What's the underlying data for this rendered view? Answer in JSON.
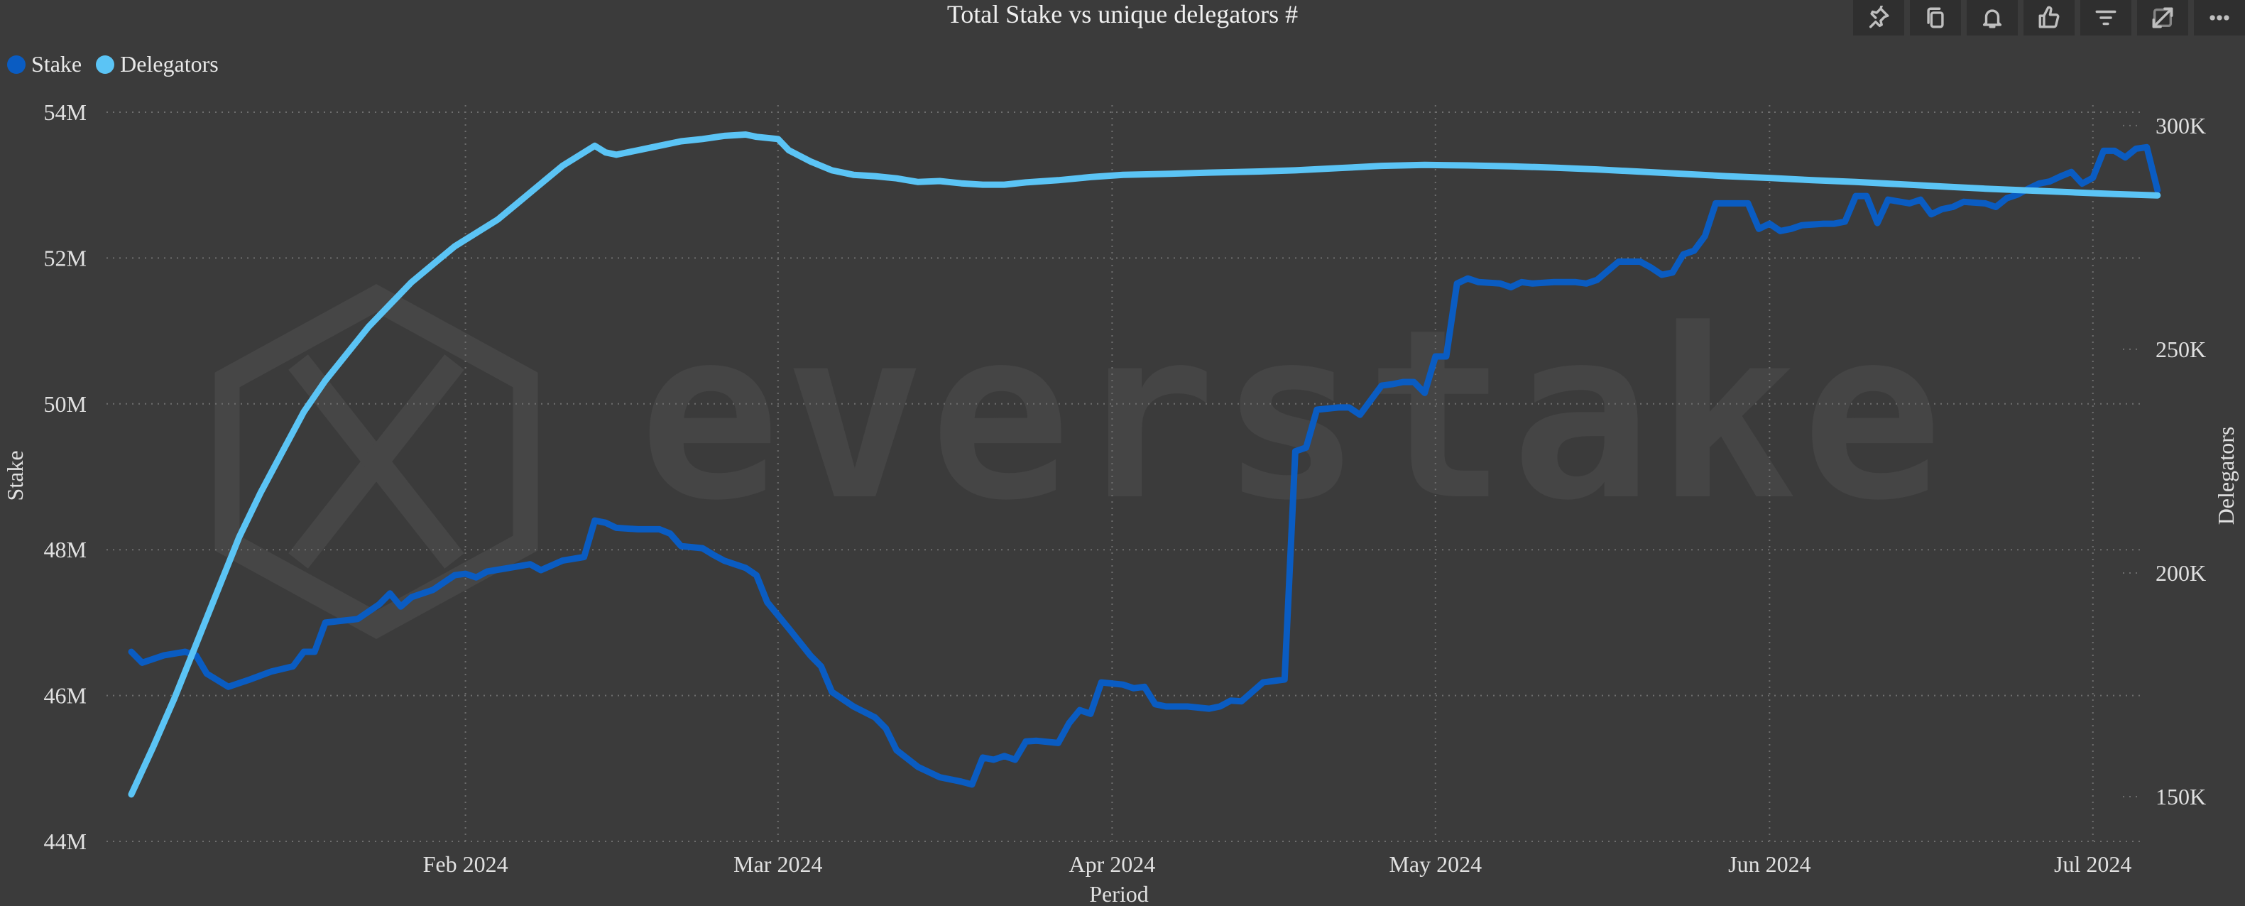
{
  "title": "Total Stake vs unique delegators #",
  "legend": {
    "items": [
      {
        "label": "Stake",
        "color": "#0a5cc2"
      },
      {
        "label": "Delegators",
        "color": "#5bc4f5"
      }
    ]
  },
  "watermark": {
    "text": "everstake"
  },
  "toolbar": {
    "icons": [
      "pin-icon",
      "copy-icon",
      "bell-icon",
      "thumbs-up-icon",
      "filter-icon",
      "expand-icon",
      "more-icon"
    ]
  },
  "chart_data": {
    "type": "line",
    "title": "Total Stake vs unique delegators #",
    "xlabel": "Period",
    "ylabel": "Stake",
    "y2label": "Delegators",
    "x_start": "2024-01-01",
    "x_end": "2024-07-03",
    "x_ticks": [
      {
        "date": "2024-02-01",
        "label": "Feb 2024"
      },
      {
        "date": "2024-03-01",
        "label": "Mar 2024"
      },
      {
        "date": "2024-04-01",
        "label": "Apr 2024"
      },
      {
        "date": "2024-05-01",
        "label": "May 2024"
      },
      {
        "date": "2024-06-01",
        "label": "Jun 2024"
      },
      {
        "date": "2024-07-01",
        "label": "Jul 2024"
      }
    ],
    "ylim": [
      44,
      54
    ],
    "y_ticks": [
      {
        "v": 44,
        "label": "44M"
      },
      {
        "v": 46,
        "label": "46M"
      },
      {
        "v": 48,
        "label": "48M"
      },
      {
        "v": 50,
        "label": "50M"
      },
      {
        "v": 52,
        "label": "52M"
      },
      {
        "v": 54,
        "label": "54M"
      }
    ],
    "y2lim": [
      140,
      303
    ],
    "y2_ticks": [
      {
        "v": 150,
        "label": "150K"
      },
      {
        "v": 200,
        "label": "200K"
      },
      {
        "v": 250,
        "label": "250K"
      },
      {
        "v": 300,
        "label": "300K"
      }
    ],
    "grid": true,
    "legend_position": "top-left",
    "series": [
      {
        "name": "Stake",
        "axis": "left",
        "color": "#0a5cc2",
        "unit": "M",
        "points": [
          [
            "2024-01-01",
            46.6
          ],
          [
            "2024-01-02",
            46.45
          ],
          [
            "2024-01-04",
            46.55
          ],
          [
            "2024-01-06",
            46.6
          ],
          [
            "2024-01-07",
            46.55
          ],
          [
            "2024-01-08",
            46.3
          ],
          [
            "2024-01-10",
            46.12
          ],
          [
            "2024-01-12",
            46.22
          ],
          [
            "2024-01-14",
            46.33
          ],
          [
            "2024-01-16",
            46.4
          ],
          [
            "2024-01-17",
            46.6
          ],
          [
            "2024-01-18",
            46.6
          ],
          [
            "2024-01-19",
            47.0
          ],
          [
            "2024-01-22",
            47.05
          ],
          [
            "2024-01-24",
            47.25
          ],
          [
            "2024-01-25",
            47.4
          ],
          [
            "2024-01-26",
            47.22
          ],
          [
            "2024-01-27",
            47.35
          ],
          [
            "2024-01-29",
            47.45
          ],
          [
            "2024-01-31",
            47.65
          ],
          [
            "2024-02-01",
            47.67
          ],
          [
            "2024-02-02",
            47.62
          ],
          [
            "2024-02-03",
            47.7
          ],
          [
            "2024-02-05",
            47.75
          ],
          [
            "2024-02-07",
            47.8
          ],
          [
            "2024-02-08",
            47.72
          ],
          [
            "2024-02-10",
            47.85
          ],
          [
            "2024-02-12",
            47.9
          ],
          [
            "2024-02-13",
            48.4
          ],
          [
            "2024-02-14",
            48.37
          ],
          [
            "2024-02-15",
            48.3
          ],
          [
            "2024-02-17",
            48.28
          ],
          [
            "2024-02-19",
            48.28
          ],
          [
            "2024-02-20",
            48.22
          ],
          [
            "2024-02-21",
            48.05
          ],
          [
            "2024-02-23",
            48.02
          ],
          [
            "2024-02-24",
            47.93
          ],
          [
            "2024-02-25",
            47.85
          ],
          [
            "2024-02-27",
            47.75
          ],
          [
            "2024-02-28",
            47.65
          ],
          [
            "2024-02-29",
            47.28
          ],
          [
            "2024-03-02",
            46.92
          ],
          [
            "2024-03-04",
            46.55
          ],
          [
            "2024-03-05",
            46.4
          ],
          [
            "2024-03-06",
            46.05
          ],
          [
            "2024-03-08",
            45.85
          ],
          [
            "2024-03-10",
            45.7
          ],
          [
            "2024-03-11",
            45.55
          ],
          [
            "2024-03-12",
            45.25
          ],
          [
            "2024-03-14",
            45.02
          ],
          [
            "2024-03-16",
            44.88
          ],
          [
            "2024-03-18",
            44.82
          ],
          [
            "2024-03-19",
            44.78
          ],
          [
            "2024-03-20",
            45.15
          ],
          [
            "2024-03-21",
            45.12
          ],
          [
            "2024-03-22",
            45.17
          ],
          [
            "2024-03-23",
            45.12
          ],
          [
            "2024-03-24",
            45.37
          ],
          [
            "2024-03-25",
            45.38
          ],
          [
            "2024-03-27",
            45.35
          ],
          [
            "2024-03-28",
            45.62
          ],
          [
            "2024-03-29",
            45.8
          ],
          [
            "2024-03-30",
            45.75
          ],
          [
            "2024-03-31",
            46.18
          ],
          [
            "2024-04-02",
            46.15
          ],
          [
            "2024-04-03",
            46.1
          ],
          [
            "2024-04-04",
            46.12
          ],
          [
            "2024-04-05",
            45.88
          ],
          [
            "2024-04-06",
            45.85
          ],
          [
            "2024-04-08",
            45.85
          ],
          [
            "2024-04-10",
            45.82
          ],
          [
            "2024-04-11",
            45.85
          ],
          [
            "2024-04-12",
            45.93
          ],
          [
            "2024-04-13",
            45.92
          ],
          [
            "2024-04-14",
            46.05
          ],
          [
            "2024-04-15",
            46.18
          ],
          [
            "2024-04-16",
            46.2
          ],
          [
            "2024-04-17",
            46.22
          ],
          [
            "2024-04-18",
            49.35
          ],
          [
            "2024-04-19",
            49.4
          ],
          [
            "2024-04-20",
            49.92
          ],
          [
            "2024-04-22",
            49.95
          ],
          [
            "2024-04-23",
            49.95
          ],
          [
            "2024-04-24",
            49.85
          ],
          [
            "2024-04-26",
            50.25
          ],
          [
            "2024-04-27",
            50.27
          ],
          [
            "2024-04-28",
            50.3
          ],
          [
            "2024-04-29",
            50.3
          ],
          [
            "2024-04-30",
            50.15
          ],
          [
            "2024-05-01",
            50.65
          ],
          [
            "2024-05-02",
            50.65
          ],
          [
            "2024-05-03",
            51.65
          ],
          [
            "2024-05-04",
            51.72
          ],
          [
            "2024-05-05",
            51.67
          ],
          [
            "2024-05-07",
            51.65
          ],
          [
            "2024-05-08",
            51.6
          ],
          [
            "2024-05-09",
            51.67
          ],
          [
            "2024-05-10",
            51.65
          ],
          [
            "2024-05-12",
            51.67
          ],
          [
            "2024-05-14",
            51.67
          ],
          [
            "2024-05-15",
            51.65
          ],
          [
            "2024-05-16",
            51.7
          ],
          [
            "2024-05-18",
            51.95
          ],
          [
            "2024-05-20",
            51.95
          ],
          [
            "2024-05-21",
            51.87
          ],
          [
            "2024-05-22",
            51.77
          ],
          [
            "2024-05-23",
            51.8
          ],
          [
            "2024-05-24",
            52.05
          ],
          [
            "2024-05-25",
            52.1
          ],
          [
            "2024-05-26",
            52.3
          ],
          [
            "2024-05-27",
            52.75
          ],
          [
            "2024-05-29",
            52.75
          ],
          [
            "2024-05-30",
            52.75
          ],
          [
            "2024-05-31",
            52.4
          ],
          [
            "2024-06-01",
            52.47
          ],
          [
            "2024-06-02",
            52.37
          ],
          [
            "2024-06-03",
            52.4
          ],
          [
            "2024-06-04",
            52.45
          ],
          [
            "2024-06-06",
            52.47
          ],
          [
            "2024-06-07",
            52.47
          ],
          [
            "2024-06-08",
            52.5
          ],
          [
            "2024-06-09",
            52.85
          ],
          [
            "2024-06-10",
            52.85
          ],
          [
            "2024-06-11",
            52.48
          ],
          [
            "2024-06-12",
            52.8
          ],
          [
            "2024-06-14",
            52.75
          ],
          [
            "2024-06-15",
            52.8
          ],
          [
            "2024-06-16",
            52.6
          ],
          [
            "2024-06-17",
            52.67
          ],
          [
            "2024-06-18",
            52.7
          ],
          [
            "2024-06-19",
            52.77
          ],
          [
            "2024-06-21",
            52.75
          ],
          [
            "2024-06-22",
            52.7
          ],
          [
            "2024-06-23",
            52.82
          ],
          [
            "2024-06-24",
            52.87
          ],
          [
            "2024-06-25",
            52.95
          ],
          [
            "2024-06-26",
            53.02
          ],
          [
            "2024-06-27",
            53.05
          ],
          [
            "2024-06-28",
            53.12
          ],
          [
            "2024-06-29",
            53.18
          ],
          [
            "2024-06-30",
            53.02
          ],
          [
            "2024-07-01",
            53.1
          ],
          [
            "2024-07-02",
            53.47
          ],
          [
            "2024-07-03",
            53.47
          ],
          [
            "2024-07-04",
            53.38
          ],
          [
            "2024-07-05",
            53.5
          ],
          [
            "2024-07-06",
            53.52
          ],
          [
            "2024-07-07",
            52.93
          ]
        ]
      },
      {
        "name": "Delegators",
        "axis": "right",
        "color": "#5bc4f5",
        "unit": "K",
        "points": [
          [
            "2024-01-01",
            150.5
          ],
          [
            "2024-01-03",
            161
          ],
          [
            "2024-01-05",
            172
          ],
          [
            "2024-01-07",
            184
          ],
          [
            "2024-01-09",
            196
          ],
          [
            "2024-01-11",
            208
          ],
          [
            "2024-01-13",
            218
          ],
          [
            "2024-01-15",
            227
          ],
          [
            "2024-01-17",
            236
          ],
          [
            "2024-01-19",
            243
          ],
          [
            "2024-01-21",
            249
          ],
          [
            "2024-01-23",
            255
          ],
          [
            "2024-01-25",
            260
          ],
          [
            "2024-01-27",
            265
          ],
          [
            "2024-01-29",
            269
          ],
          [
            "2024-01-31",
            273
          ],
          [
            "2024-02-02",
            276
          ],
          [
            "2024-02-04",
            279
          ],
          [
            "2024-02-06",
            283
          ],
          [
            "2024-02-08",
            287
          ],
          [
            "2024-02-10",
            291
          ],
          [
            "2024-02-12",
            294
          ],
          [
            "2024-02-13",
            295.5
          ],
          [
            "2024-02-14",
            294
          ],
          [
            "2024-02-15",
            293.5
          ],
          [
            "2024-02-17",
            294.5
          ],
          [
            "2024-02-19",
            295.5
          ],
          [
            "2024-02-21",
            296.5
          ],
          [
            "2024-02-23",
            297
          ],
          [
            "2024-02-25",
            297.7
          ],
          [
            "2024-02-27",
            298
          ],
          [
            "2024-02-28",
            297.5
          ],
          [
            "2024-03-01",
            297
          ],
          [
            "2024-03-02",
            294.5
          ],
          [
            "2024-03-04",
            292
          ],
          [
            "2024-03-06",
            290
          ],
          [
            "2024-03-08",
            289
          ],
          [
            "2024-03-10",
            288.7
          ],
          [
            "2024-03-12",
            288.2
          ],
          [
            "2024-03-14",
            287.4
          ],
          [
            "2024-03-16",
            287.6
          ],
          [
            "2024-03-18",
            287.1
          ],
          [
            "2024-03-20",
            286.8
          ],
          [
            "2024-03-22",
            286.8
          ],
          [
            "2024-03-24",
            287.3
          ],
          [
            "2024-03-27",
            287.8
          ],
          [
            "2024-03-30",
            288.5
          ],
          [
            "2024-04-02",
            289
          ],
          [
            "2024-04-06",
            289.2
          ],
          [
            "2024-04-10",
            289.5
          ],
          [
            "2024-04-14",
            289.7
          ],
          [
            "2024-04-18",
            290
          ],
          [
            "2024-04-22",
            290.5
          ],
          [
            "2024-04-26",
            291
          ],
          [
            "2024-04-30",
            291.2
          ],
          [
            "2024-05-04",
            291.1
          ],
          [
            "2024-05-08",
            290.9
          ],
          [
            "2024-05-12",
            290.6
          ],
          [
            "2024-05-16",
            290.2
          ],
          [
            "2024-05-20",
            289.7
          ],
          [
            "2024-05-24",
            289.2
          ],
          [
            "2024-05-28",
            288.7
          ],
          [
            "2024-06-01",
            288.3
          ],
          [
            "2024-06-05",
            287.8
          ],
          [
            "2024-06-09",
            287.4
          ],
          [
            "2024-06-13",
            286.9
          ],
          [
            "2024-06-17",
            286.4
          ],
          [
            "2024-06-21",
            285.9
          ],
          [
            "2024-06-25",
            285.5
          ],
          [
            "2024-06-29",
            285.1
          ],
          [
            "2024-07-03",
            284.7
          ],
          [
            "2024-07-07",
            284.4
          ]
        ]
      }
    ]
  }
}
